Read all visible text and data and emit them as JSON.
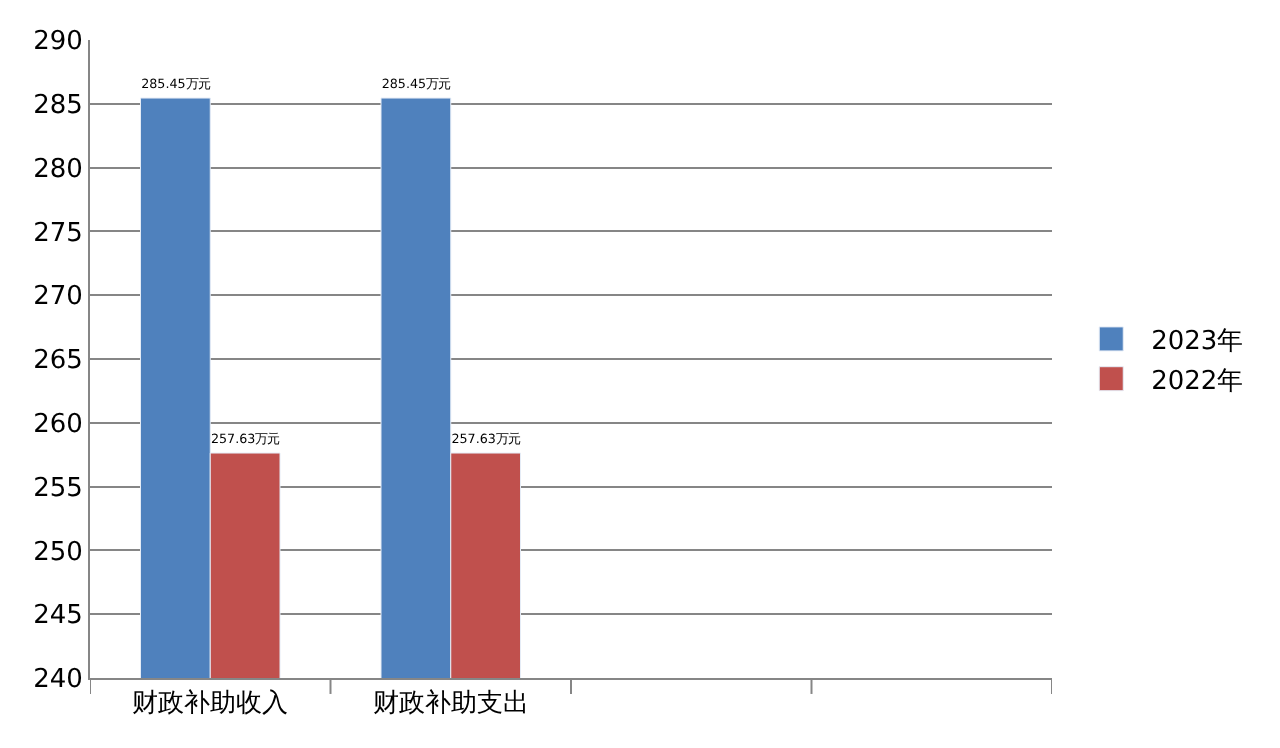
{
  "chart_data": {
    "type": "bar",
    "categories": [
      "财政补助收入",
      "财政补助支出",
      null,
      null
    ],
    "series": [
      {
        "name": "2023年",
        "color": "#4f81bd",
        "values": [
          285.45,
          285.45,
          null,
          null
        ],
        "value_labels": [
          "285.45万元",
          "285.45万元",
          null,
          null
        ]
      },
      {
        "name": "2022年",
        "color": "#c0504d",
        "values": [
          257.63,
          257.63,
          null,
          null
        ],
        "value_labels": [
          "257.63万元",
          "257.63万元",
          null,
          null
        ]
      }
    ],
    "ylim": [
      240,
      290
    ],
    "yticks": [
      240,
      245,
      250,
      255,
      260,
      265,
      270,
      275,
      280,
      285,
      290
    ],
    "grid": "y",
    "legend": "right"
  }
}
